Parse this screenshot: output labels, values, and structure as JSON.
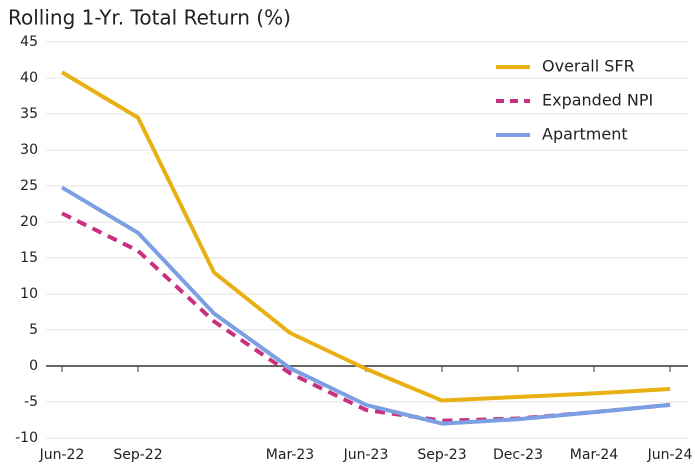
{
  "chart_data": {
    "type": "line",
    "title": "Rolling 1-Yr. Total Return (%)",
    "categories": [
      "Jun-22",
      "Sep-22",
      null,
      "Mar-23",
      "Jun-23",
      "Sep-23",
      "Dec-23",
      "Mar-24",
      "Jun-24"
    ],
    "series": [
      {
        "name": "Overall SFR",
        "color": "#e8b012",
        "dash": false,
        "values": [
          40.8,
          34.5,
          13.0,
          4.6,
          -0.4,
          -4.8,
          -4.3,
          -3.8,
          -3.2
        ]
      },
      {
        "name": "Expanded NPI",
        "color": "#c9307f",
        "dash": true,
        "values": [
          21.2,
          16.0,
          6.2,
          -1.0,
          -6.1,
          -7.6,
          -7.3,
          -6.4,
          -5.4
        ]
      },
      {
        "name": "Apartment",
        "color": "#7b9fe3",
        "dash": false,
        "values": [
          24.8,
          18.5,
          7.3,
          -0.3,
          -5.4,
          -8.0,
          -7.4,
          -6.4,
          -5.4
        ]
      }
    ],
    "ylim": [
      -10,
      45
    ],
    "yticks": [
      -10,
      -5,
      0,
      5,
      10,
      15,
      20,
      25,
      30,
      35,
      40,
      45
    ],
    "grid": true,
    "legend": "top-right"
  }
}
